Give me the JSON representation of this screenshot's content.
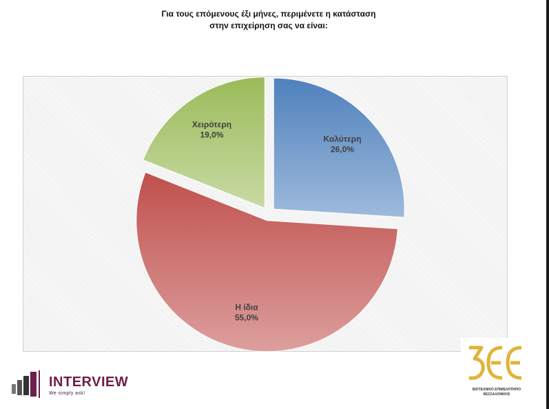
{
  "title_line1": "Για τους επόμενους έξι μήνες, περιμένετε η κατάσταση",
  "title_line2": "στην επιχείρηση σας να είναι:",
  "chart_data": {
    "type": "pie",
    "title": "Για τους επόμενους έξι μήνες, περιμένετε η κατάσταση στην επιχείρηση σας να είναι:",
    "slices": [
      {
        "label": "Καλύτερη",
        "value": 26.0,
        "display": "26,0%",
        "color": "#4f81bd"
      },
      {
        "label": "Η ίδια",
        "value": 55.0,
        "display": "55,0%",
        "color": "#c0504d"
      },
      {
        "label": "Χειρότερη",
        "value": 19.0,
        "display": "19,0%",
        "color": "#9bbb59"
      }
    ],
    "exploded": true,
    "legend": "none"
  },
  "logos": {
    "interview_name": "INTERVIEW",
    "interview_tagline": "We simply ask!",
    "bee_mark": "BEE",
    "bee_line1": "ΒΙΟΤΕΧΝΙΚΟ ΕΠΙΜΕΛΗΤΗΡΙΟ",
    "bee_line2": "ΘΕΣΣΑΛΟΝΙΚΗΣ"
  }
}
